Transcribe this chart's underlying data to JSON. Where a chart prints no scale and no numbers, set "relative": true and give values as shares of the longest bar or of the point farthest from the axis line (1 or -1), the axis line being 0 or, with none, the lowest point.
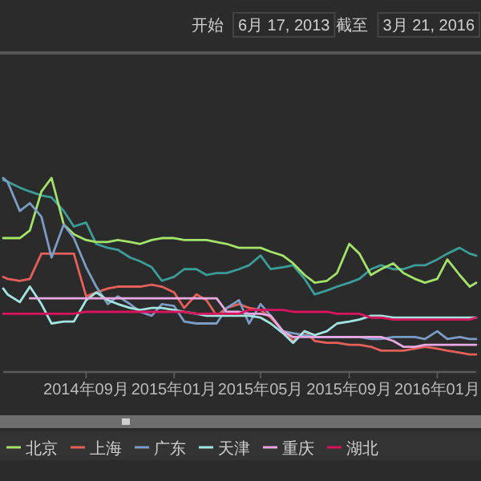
{
  "chart_data": {
    "type": "line",
    "relative": true,
    "legend": "bottom",
    "marker": "none",
    "line_style": "solid",
    "annotations": [
      "开始",
      "6月 17, 2013",
      "截至",
      "3月 21, 2016"
    ],
    "xlim": [
      "2014-05-09",
      "2016-02-24"
    ],
    "xticks": [
      {
        "value": "2014-09-01",
        "label": "2014年09月"
      },
      {
        "value": "2015-01-01",
        "label": "2015年01月"
      },
      {
        "value": "2015-05-01",
        "label": "2015年05月"
      },
      {
        "value": "2015-09-01",
        "label": "2015年09月"
      },
      {
        "value": "2016-01-01",
        "label": "2016年01月"
      }
    ],
    "x": [
      "2014-05-09",
      "2014-05-15",
      "2014-06-01",
      "2014-06-15",
      "2014-07-01",
      "2014-07-15",
      "2014-08-01",
      "2014-08-15",
      "2014-09-01",
      "2014-09-15",
      "2014-10-01",
      "2014-10-15",
      "2014-11-01",
      "2014-11-15",
      "2014-12-01",
      "2014-12-15",
      "2015-01-01",
      "2015-01-15",
      "2015-02-01",
      "2015-02-15",
      "2015-03-01",
      "2015-03-15",
      "2015-04-01",
      "2015-04-15",
      "2015-05-01",
      "2015-05-15",
      "2015-06-01",
      "2015-06-15",
      "2015-07-01",
      "2015-07-15",
      "2015-08-01",
      "2015-08-15",
      "2015-09-01",
      "2015-09-15",
      "2015-10-01",
      "2015-10-15",
      "2015-11-01",
      "2015-11-15",
      "2015-12-01",
      "2015-12-15",
      "2016-01-01",
      "2016-01-15",
      "2016-02-01",
      "2016-02-15",
      "2016-02-24"
    ],
    "series": [
      {
        "color": "#3c9c98",
        "values": [
          0.99,
          0.98,
          0.95,
          0.93,
          0.91,
          0.9,
          0.83,
          0.75,
          0.77,
          0.66,
          0.64,
          0.63,
          0.59,
          0.57,
          0.54,
          0.47,
          0.49,
          0.53,
          0.53,
          0.5,
          0.51,
          0.51,
          0.53,
          0.55,
          0.6,
          0.53,
          0.54,
          0.55,
          0.48,
          0.4,
          0.42,
          0.44,
          0.46,
          0.48,
          0.53,
          0.55,
          0.53,
          0.53,
          0.55,
          0.55,
          0.58,
          0.61,
          0.64,
          0.61,
          0.6
        ]
      },
      {
        "name": "北京",
        "color": "#a3e36a",
        "values": [
          0.69,
          0.69,
          0.69,
          0.73,
          0.93,
          1.0,
          0.76,
          0.71,
          0.68,
          0.67,
          0.67,
          0.68,
          0.67,
          0.66,
          0.68,
          0.69,
          0.69,
          0.68,
          0.68,
          0.68,
          0.67,
          0.66,
          0.64,
          0.64,
          0.64,
          0.62,
          0.6,
          0.56,
          0.5,
          0.46,
          0.47,
          0.51,
          0.66,
          0.61,
          0.5,
          0.53,
          0.56,
          0.51,
          0.48,
          0.46,
          0.48,
          0.58,
          0.5,
          0.44,
          0.46
        ]
      },
      {
        "name": "上海",
        "color": "#e5605a",
        "values": [
          0.49,
          0.48,
          0.47,
          0.48,
          0.61,
          0.61,
          0.61,
          0.61,
          0.39,
          0.41,
          0.43,
          0.44,
          0.44,
          0.44,
          0.45,
          0.44,
          0.41,
          0.33,
          0.4,
          0.37,
          0.29,
          0.33,
          0.35,
          0.33,
          0.32,
          0.28,
          0.21,
          0.16,
          0.21,
          0.16,
          0.15,
          0.15,
          0.14,
          0.14,
          0.13,
          0.11,
          0.11,
          0.11,
          0.12,
          0.13,
          0.12,
          0.11,
          0.1,
          0.09,
          0.09
        ]
      },
      {
        "name": "广东",
        "color": "#7b9cc4",
        "values": [
          1.0,
          0.98,
          0.83,
          0.87,
          0.8,
          0.59,
          0.76,
          0.69,
          0.54,
          0.44,
          0.35,
          0.39,
          0.35,
          0.31,
          0.29,
          0.35,
          0.34,
          0.26,
          0.25,
          0.25,
          0.25,
          0.33,
          0.37,
          0.25,
          0.35,
          0.29,
          0.21,
          0.2,
          0.19,
          0.18,
          0.18,
          0.18,
          0.18,
          0.18,
          0.17,
          0.17,
          0.18,
          0.18,
          0.18,
          0.17,
          0.21,
          0.17,
          0.18,
          0.17,
          0.17
        ]
      },
      {
        "name": "天津",
        "color": "#a2e4e0",
        "values": [
          0.43,
          0.4,
          0.36,
          0.44,
          0.35,
          0.25,
          0.26,
          0.26,
          0.37,
          0.41,
          0.37,
          0.35,
          0.33,
          0.32,
          0.33,
          0.33,
          0.32,
          0.31,
          0.3,
          0.29,
          0.29,
          0.29,
          0.29,
          0.29,
          0.28,
          0.25,
          0.2,
          0.15,
          0.21,
          0.19,
          0.21,
          0.25,
          0.26,
          0.27,
          0.29,
          0.29,
          0.28,
          0.28,
          0.28,
          0.28,
          0.28,
          0.28,
          0.28,
          0.28,
          0.28
        ]
      },
      {
        "name": "重庆",
        "color": "#e8a8e2",
        "values": [
          null,
          null,
          null,
          0.38,
          0.38,
          0.38,
          0.38,
          0.38,
          0.38,
          0.38,
          0.38,
          0.38,
          0.38,
          0.38,
          0.38,
          0.38,
          0.38,
          0.38,
          0.38,
          0.38,
          0.38,
          0.31,
          0.31,
          0.3,
          0.3,
          0.29,
          0.21,
          0.18,
          0.18,
          0.18,
          0.18,
          0.18,
          0.18,
          0.18,
          0.18,
          0.18,
          0.16,
          0.13,
          0.13,
          0.14,
          0.14,
          0.14,
          0.14,
          0.14,
          0.14
        ]
      },
      {
        "name": "湖北",
        "color": "#d8145c",
        "values": [
          0.3,
          0.3,
          0.3,
          0.3,
          0.3,
          0.3,
          0.3,
          0.3,
          0.31,
          0.31,
          0.31,
          0.31,
          0.31,
          0.31,
          0.31,
          0.31,
          0.31,
          0.31,
          0.3,
          0.3,
          0.3,
          0.3,
          0.3,
          0.32,
          0.32,
          0.32,
          0.32,
          0.31,
          0.31,
          0.31,
          0.31,
          0.3,
          0.3,
          0.3,
          0.28,
          0.28,
          0.27,
          0.27,
          0.27,
          0.27,
          0.27,
          0.27,
          0.27,
          0.27,
          0.28
        ]
      }
    ]
  }
}
